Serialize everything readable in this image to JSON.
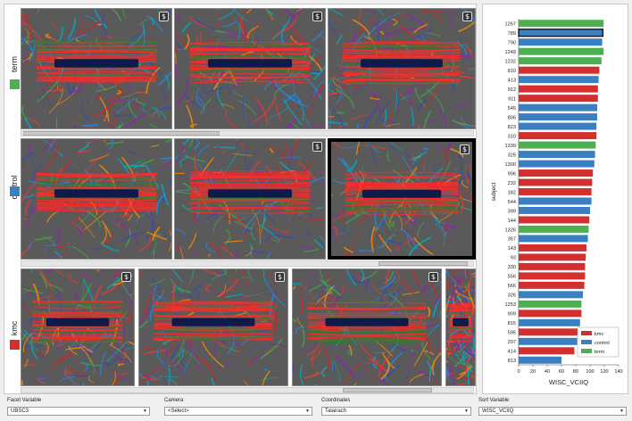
{
  "facets": [
    {
      "label": "term",
      "color": "#4caf50"
    },
    {
      "label": "control",
      "color": "#3a7fc1"
    },
    {
      "label": "kmc",
      "color": "#d32f2f"
    }
  ],
  "thumbnails": {
    "camera_icon": "camera-icon",
    "scroll_left_glyph": "≡"
  },
  "controls": {
    "facet_variable": {
      "label": "Facet Variable",
      "value": "UBSC3"
    },
    "camera": {
      "label": "Camera",
      "value": "<Select>"
    },
    "coordinates": {
      "label": "Coordinates",
      "value": "Talairach"
    },
    "sort_variable": {
      "label": "Sort Variable",
      "value": "WISC_VCIIQ"
    }
  },
  "chart_data": {
    "type": "bar",
    "orientation": "horizontal",
    "xlabel": "WISC_VCIIQ",
    "ylabel": "subject",
    "xlim": [
      0,
      140
    ],
    "xticks": [
      0,
      20,
      40,
      60,
      80,
      100,
      120,
      140
    ],
    "legend": {
      "placement": "bottom-right",
      "entries": [
        "kmc",
        "control",
        "term"
      ]
    },
    "colors": {
      "kmc": "#d32f2f",
      "control": "#3a7fc1",
      "term": "#4caf50"
    },
    "categories": [
      "1267",
      "789",
      "790",
      "1249",
      "1232",
      "810",
      "413",
      "912",
      "911",
      "545",
      "806",
      "823",
      "310",
      "1339",
      "325",
      "1300",
      "906",
      "232",
      "182",
      "544",
      "399",
      "144",
      "1326",
      "367",
      "143",
      "93",
      "330",
      "556",
      "566",
      "326",
      "1253",
      "909",
      "815",
      "595",
      "207",
      "414",
      "813"
    ],
    "values": [
      119,
      118,
      117,
      119,
      116,
      113,
      112,
      111,
      111,
      110,
      110,
      109,
      109,
      108,
      107,
      106,
      104,
      103,
      102,
      102,
      100,
      99,
      98,
      97,
      95,
      94,
      93,
      93,
      92,
      90,
      88,
      88,
      86,
      83,
      82,
      78,
      60
    ],
    "groups": [
      "term",
      "control",
      "control",
      "term",
      "term",
      "kmc",
      "control",
      "kmc",
      "kmc",
      "control",
      "control",
      "control",
      "kmc",
      "term",
      "control",
      "control",
      "kmc",
      "kmc",
      "kmc",
      "control",
      "control",
      "kmc",
      "term",
      "control",
      "kmc",
      "kmc",
      "kmc",
      "kmc",
      "kmc",
      "control",
      "term",
      "kmc",
      "control",
      "kmc",
      "control",
      "kmc",
      "control"
    ],
    "highlighted": "789"
  }
}
